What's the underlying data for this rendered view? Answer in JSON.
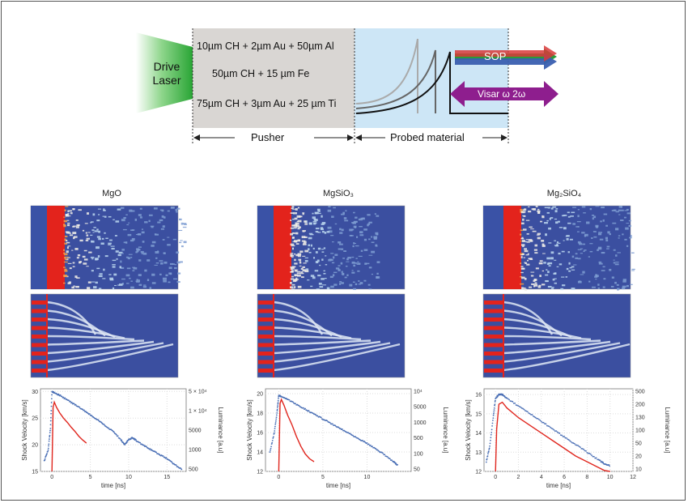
{
  "diagram": {
    "drive_laser": [
      "Drive",
      "Laser"
    ],
    "layers": [
      "10µm CH + 2µm Au + 50µm Al",
      "50µm CH + 15 µm Fe",
      "75µm CH + 3µm Au + 25 µm Ti"
    ],
    "pusher_label": "Pusher",
    "probed_label": "Probed material",
    "sop_label": "SOP",
    "visar_label": "Visar ω 2ω",
    "colors": {
      "laser": "#2fae3a",
      "pusher_bg": "#d9d6d3",
      "probed_bg": "#cde6f6",
      "visar": "#8e1e8e"
    }
  },
  "panels": [
    {
      "title": "MgO"
    },
    {
      "title": "MgSiO₃"
    },
    {
      "title": "Mg₂SiO₄"
    }
  ],
  "chart_data": [
    {
      "type": "line",
      "title": "MgO",
      "xlabel": "time [ns]",
      "ylabel": "Shock Velocity [km/s]",
      "y2label": "Luminance [a.u]",
      "xlim": [
        -1.5,
        17.5
      ],
      "ylim": [
        15,
        30.5
      ],
      "xticks": [
        "0",
        "5",
        "10",
        "15"
      ],
      "yticks": [
        "15",
        "20",
        "25",
        "30"
      ],
      "y2ticks": [
        "5 × 10⁴",
        "1 × 10⁴",
        "5000",
        "1000",
        "500"
      ],
      "y2scale": "log",
      "grid": true,
      "series": [
        {
          "color": "#4a6fb5",
          "x": [
            -1,
            -0.5,
            -0.2,
            0,
            0.3,
            1,
            2,
            3,
            4,
            5,
            6,
            7,
            8,
            9,
            9.5,
            10,
            10.5,
            11,
            12,
            13,
            14,
            15,
            16,
            17
          ],
          "y": [
            17,
            19,
            23,
            30,
            29.8,
            29.3,
            28.4,
            27.5,
            26.6,
            25.6,
            24.6,
            23.5,
            22.5,
            20.9,
            20.0,
            21.0,
            21.3,
            20.8,
            19.8,
            19.0,
            18.2,
            17.4,
            16.3,
            15.3
          ]
        },
        {
          "color": "#e0261e",
          "x": [
            0,
            0.15,
            0.3,
            0.6,
            1,
            1.5,
            2,
            2.5,
            3,
            3.5,
            4,
            4.5
          ],
          "y": [
            15,
            27,
            28,
            27,
            26,
            25,
            24.2,
            23.3,
            22.5,
            21.6,
            20.9,
            20.3
          ]
        }
      ]
    },
    {
      "type": "line",
      "title": "MgSiO₃",
      "xlabel": "time [ns]",
      "ylabel": "Shock Velocity [km/s]",
      "y2label": "Luminance [a.u]",
      "xlim": [
        -1.5,
        15
      ],
      "ylim": [
        12,
        20.5
      ],
      "xticks": [
        "0",
        "5",
        "10"
      ],
      "yticks": [
        "12",
        "14",
        "16",
        "18",
        "20"
      ],
      "y2ticks": [
        "10⁴",
        "5000",
        "1000",
        "500",
        "100",
        "50"
      ],
      "y2scale": "log",
      "grid": true,
      "series": [
        {
          "color": "#4a6fb5",
          "x": [
            -1,
            -0.5,
            -0.2,
            0,
            0.3,
            1,
            2,
            3,
            4,
            5,
            6,
            7,
            8,
            9,
            10,
            11,
            12,
            13,
            13.5
          ],
          "y": [
            14,
            16,
            18,
            19.8,
            19.7,
            19.4,
            18.9,
            18.4,
            17.9,
            17.4,
            16.9,
            16.4,
            15.9,
            15.4,
            14.9,
            14.3,
            13.7,
            13.0,
            12.6
          ]
        },
        {
          "color": "#e0261e",
          "x": [
            0,
            0.15,
            0.3,
            0.6,
            1,
            1.5,
            2,
            2.5,
            3,
            3.5,
            4
          ],
          "y": [
            12,
            19,
            19.4,
            18.8,
            17.8,
            16.8,
            15.6,
            14.6,
            13.8,
            13.3,
            13.0
          ]
        }
      ]
    },
    {
      "type": "line",
      "title": "Mg₂SiO₄",
      "xlabel": "time [ns]",
      "ylabel": "Shock Velocity [km/s]",
      "y2label": "Luminance [a.u]",
      "xlim": [
        -1,
        12
      ],
      "ylim": [
        12,
        16.3
      ],
      "xticks": [
        "0",
        "2",
        "4",
        "6",
        "8",
        "10",
        "12"
      ],
      "yticks": [
        "12",
        "13",
        "14",
        "15",
        "16"
      ],
      "y2ticks": [
        "500",
        "200",
        "130",
        "100",
        "50",
        "20",
        "10"
      ],
      "y2scale": "log",
      "grid": true,
      "series": [
        {
          "color": "#4a6fb5",
          "x": [
            -0.8,
            -0.5,
            -0.2,
            0,
            0.3,
            0.6,
            1,
            2,
            3,
            4,
            5,
            6,
            7,
            8,
            9,
            9.5,
            10
          ],
          "y": [
            12.5,
            13.3,
            14.8,
            15.8,
            16.0,
            16.0,
            15.8,
            15.4,
            15.0,
            14.6,
            14.2,
            13.8,
            13.4,
            13.0,
            12.6,
            12.4,
            12.3
          ]
        },
        {
          "color": "#e0261e",
          "x": [
            0,
            0.1,
            0.3,
            0.6,
            1,
            2,
            3,
            4,
            5,
            6,
            7,
            8,
            9,
            9.5,
            10
          ],
          "y": [
            12,
            14.2,
            15.5,
            15.6,
            15.3,
            14.8,
            14.4,
            14.0,
            13.6,
            13.2,
            12.8,
            12.5,
            12.2,
            12.05,
            12.0
          ]
        }
      ]
    }
  ]
}
